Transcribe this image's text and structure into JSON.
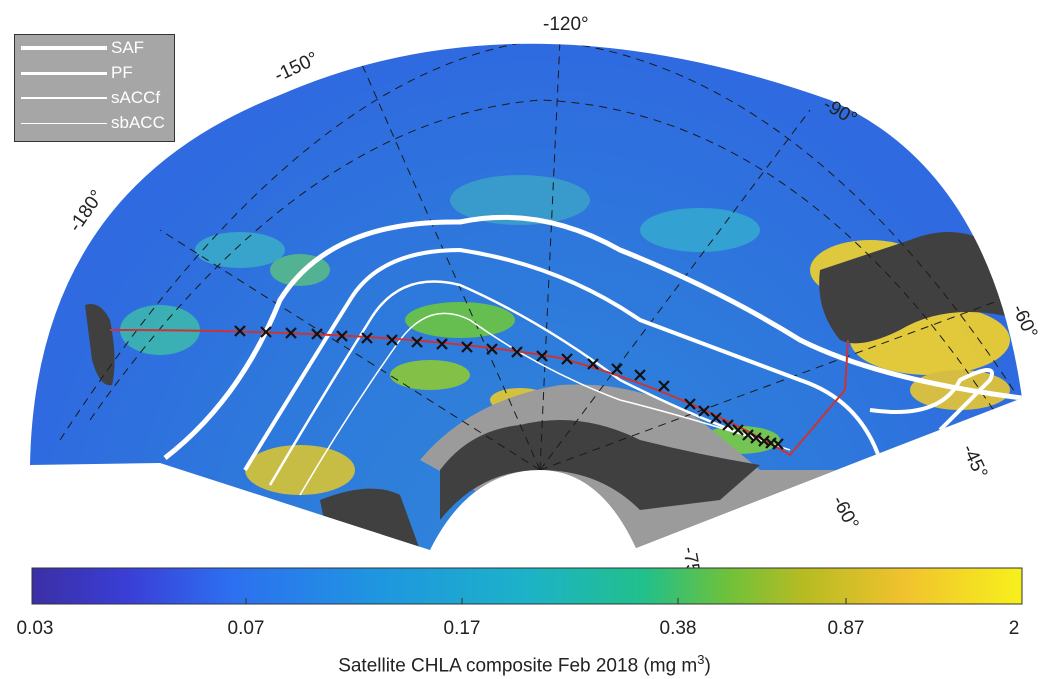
{
  "map": {
    "longitude_labels": [
      "-180°",
      "-150°",
      "-120°",
      "-90°",
      "-60°",
      "-45°"
    ],
    "latitude_labels": [
      "-60°",
      "-75"
    ],
    "colors": {
      "ocean_low": "#2f6fe0",
      "ocean_mid": "#2ea0d8",
      "bloom_green": "#6cc640",
      "bloom_yellow": "#f5d32a",
      "land": "#404040",
      "sea_ice_mask": "#9b9b9b",
      "fronts": "#ffffff",
      "transect": "#cc3333",
      "stations": "#111111"
    }
  },
  "legend": {
    "items": [
      {
        "label": "SAF"
      },
      {
        "label": "PF"
      },
      {
        "label": "sACCf"
      },
      {
        "label": "sbACC"
      }
    ]
  },
  "colorbar": {
    "tick_labels": [
      "0.03",
      "0.07",
      "0.17",
      "0.38",
      "0.87",
      "2"
    ],
    "title": "Satellite CHLA composite Feb 2018 (mg m",
    "title_superscript": "3",
    "title_suffix": ")",
    "scale": "log",
    "range": [
      0.03,
      2
    ]
  }
}
